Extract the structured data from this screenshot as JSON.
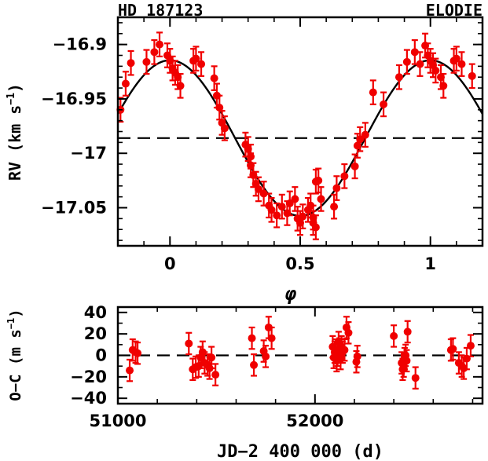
{
  "chart_data": [
    {
      "type": "scatter",
      "title_left": "HD 187123",
      "title_right": "ELODIE",
      "xlabel": "φ",
      "ylabel": "RV (km s",
      "ylabel_sup": "−1",
      "ylabel_close": ")",
      "xlim": [
        -0.2,
        1.2
      ],
      "ylim": [
        -17.085,
        -16.875
      ],
      "xticks": [
        0,
        0.5,
        1
      ],
      "xtick_labels": [
        "0",
        "0.5",
        "1"
      ],
      "yticks": [
        -16.9,
        -16.95,
        -17.0,
        -17.05
      ],
      "ytick_labels": [
        "−16.9",
        "−16.95",
        "−17",
        "−17.05"
      ],
      "reference_line": -16.986,
      "model": {
        "gamma": -16.986,
        "amplitude": 0.0715,
        "peak_phase": 0.0
      },
      "series": [
        {
          "error": 0.011,
          "points": [
            [
              -0.19,
              -16.96
            ],
            [
              -0.17,
              -16.936
            ],
            [
              -0.15,
              -16.917
            ],
            [
              -0.09,
              -16.916
            ],
            [
              -0.06,
              -16.907
            ],
            [
              -0.04,
              -16.9
            ],
            [
              -0.01,
              -16.91
            ],
            [
              0.0,
              -16.915
            ],
            [
              0.01,
              -16.922
            ],
            [
              0.02,
              -16.926
            ],
            [
              0.03,
              -16.93
            ],
            [
              0.04,
              -16.938
            ],
            [
              0.09,
              -16.915
            ],
            [
              0.1,
              -16.913
            ],
            [
              0.12,
              -16.918
            ],
            [
              0.17,
              -16.931
            ],
            [
              0.18,
              -16.947
            ],
            [
              0.19,
              -16.958
            ],
            [
              0.2,
              -16.972
            ],
            [
              0.21,
              -16.977
            ],
            [
              0.29,
              -16.992
            ],
            [
              0.3,
              -16.996
            ],
            [
              0.31,
              -17.003
            ],
            [
              0.31,
              -17.011
            ],
            [
              0.32,
              -17.02
            ],
            [
              0.33,
              -17.028
            ],
            [
              0.34,
              -17.033
            ],
            [
              0.36,
              -17.037
            ],
            [
              0.38,
              -17.048
            ],
            [
              0.39,
              -17.052
            ],
            [
              0.41,
              -17.057
            ],
            [
              0.43,
              -17.049
            ],
            [
              0.45,
              -17.055
            ],
            [
              0.46,
              -17.046
            ],
            [
              0.48,
              -17.042
            ],
            [
              0.49,
              -17.06
            ],
            [
              0.5,
              -17.064
            ],
            [
              0.51,
              -17.058
            ],
            [
              0.53,
              -17.052
            ],
            [
              0.54,
              -17.048
            ],
            [
              0.55,
              -17.059
            ],
            [
              0.55,
              -17.064
            ],
            [
              0.56,
              -17.068
            ],
            [
              0.56,
              -17.026
            ],
            [
              0.57,
              -17.025
            ],
            [
              0.58,
              -17.042
            ],
            [
              0.63,
              -17.049
            ],
            [
              0.64,
              -17.032
            ],
            [
              0.67,
              -17.021
            ],
            [
              0.71,
              -17.012
            ],
            [
              0.72,
              -16.993
            ],
            [
              0.73,
              -16.987
            ],
            [
              0.75,
              -16.983
            ],
            [
              0.78,
              -16.944
            ],
            [
              0.82,
              -16.955
            ],
            [
              0.88,
              -16.93
            ],
            [
              0.91,
              -16.916
            ],
            [
              0.94,
              -16.907
            ],
            [
              0.96,
              -16.918
            ],
            [
              0.98,
              -16.901
            ],
            [
              0.99,
              -16.91
            ],
            [
              1.0,
              -16.915
            ],
            [
              1.01,
              -16.919
            ],
            [
              1.02,
              -16.924
            ],
            [
              1.04,
              -16.93
            ],
            [
              1.05,
              -16.938
            ],
            [
              1.09,
              -16.915
            ],
            [
              1.1,
              -16.913
            ],
            [
              1.12,
              -16.918
            ],
            [
              1.16,
              -16.929
            ]
          ]
        }
      ]
    },
    {
      "type": "scatter",
      "xlabel": "JD−2 400 000 (d)",
      "ylabel": "O−C (m s",
      "ylabel_sup": "−1",
      "ylabel_close": ")",
      "xlim": [
        51000,
        52850
      ],
      "ylim": [
        -45,
        45
      ],
      "xticks": [
        51000,
        52000
      ],
      "xtick_labels": [
        "51000",
        "52000"
      ],
      "yticks": [
        40,
        20,
        0,
        -20,
        -40
      ],
      "ytick_labels": [
        "40",
        "20",
        "0",
        "−20",
        "−40"
      ],
      "reference_line": 0,
      "series": [
        {
          "error": 10,
          "points": [
            [
              51060,
              -14
            ],
            [
              51075,
              5
            ],
            [
              51090,
              3
            ],
            [
              51100,
              2
            ],
            [
              51360,
              11
            ],
            [
              51380,
              -13
            ],
            [
              51395,
              -11
            ],
            [
              51410,
              -10
            ],
            [
              51420,
              -2
            ],
            [
              51430,
              3
            ],
            [
              51440,
              -7
            ],
            [
              51455,
              -9
            ],
            [
              51465,
              -12
            ],
            [
              51475,
              -2
            ],
            [
              51495,
              -18
            ],
            [
              51680,
              16
            ],
            [
              51690,
              -9
            ],
            [
              51740,
              4
            ],
            [
              51750,
              -1
            ],
            [
              51765,
              26
            ],
            [
              51780,
              16
            ],
            [
              52090,
              8
            ],
            [
              52095,
              -2
            ],
            [
              52100,
              3
            ],
            [
              52105,
              5
            ],
            [
              52110,
              -5
            ],
            [
              52115,
              0
            ],
            [
              52120,
              12
            ],
            [
              52125,
              6
            ],
            [
              52130,
              -3
            ],
            [
              52135,
              8
            ],
            [
              52140,
              3
            ],
            [
              52150,
              5
            ],
            [
              52160,
              26
            ],
            [
              52170,
              21
            ],
            [
              52210,
              -6
            ],
            [
              52215,
              -1
            ],
            [
              52400,
              18
            ],
            [
              52440,
              -7
            ],
            [
              52445,
              -13
            ],
            [
              52450,
              -10
            ],
            [
              52455,
              -3
            ],
            [
              52460,
              0
            ],
            [
              52465,
              -5
            ],
            [
              52470,
              22
            ],
            [
              52510,
              -21
            ],
            [
              52690,
              5
            ],
            [
              52700,
              6
            ],
            [
              52730,
              -7
            ],
            [
              52745,
              -10
            ],
            [
              52755,
              -12
            ],
            [
              52770,
              -3
            ],
            [
              52790,
              9
            ]
          ]
        }
      ]
    }
  ]
}
